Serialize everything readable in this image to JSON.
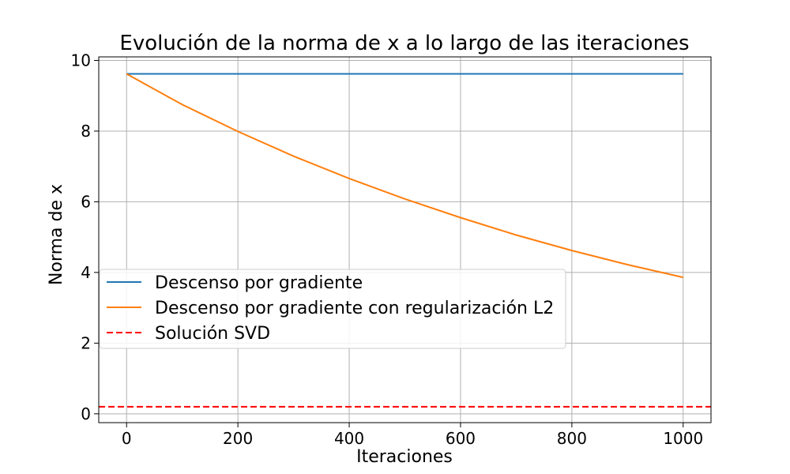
{
  "chart_data": {
    "type": "line",
    "title": "Evolución de la norma de x a lo largo de las iteraciones",
    "xlabel": "Iteraciones",
    "ylabel": "Norma de x",
    "xlim": [
      -50,
      1050
    ],
    "ylim": [
      -0.25,
      10.1
    ],
    "xticks": [
      0,
      200,
      400,
      600,
      800,
      1000
    ],
    "xtick_labels": [
      "0",
      "200",
      "400",
      "600",
      "800",
      "1000"
    ],
    "yticks": [
      0,
      2,
      4,
      6,
      8,
      10
    ],
    "ytick_labels": [
      "0",
      "2",
      "4",
      "6",
      "8",
      "10"
    ],
    "grid": true,
    "legend_position": "center-left",
    "series": [
      {
        "name": "Descenso por gradiente",
        "color": "#1f77b4",
        "style": "solid",
        "x": [
          0,
          100,
          200,
          300,
          400,
          500,
          600,
          700,
          800,
          900,
          1000
        ],
        "y": [
          9.62,
          9.62,
          9.62,
          9.62,
          9.62,
          9.62,
          9.62,
          9.62,
          9.62,
          9.62,
          9.62
        ]
      },
      {
        "name": "Descenso por gradiente con regularización L2",
        "color": "#ff7f0e",
        "style": "solid",
        "x": [
          0,
          100,
          200,
          300,
          400,
          500,
          600,
          700,
          800,
          900,
          1000
        ],
        "y": [
          9.62,
          8.75,
          7.99,
          7.29,
          6.66,
          6.08,
          5.55,
          5.06,
          4.62,
          4.22,
          3.86
        ]
      },
      {
        "name": "Solución SVD",
        "color": "#ff0000",
        "style": "dashed",
        "x": [
          -50,
          1050
        ],
        "y": [
          0.2,
          0.2
        ]
      }
    ]
  }
}
